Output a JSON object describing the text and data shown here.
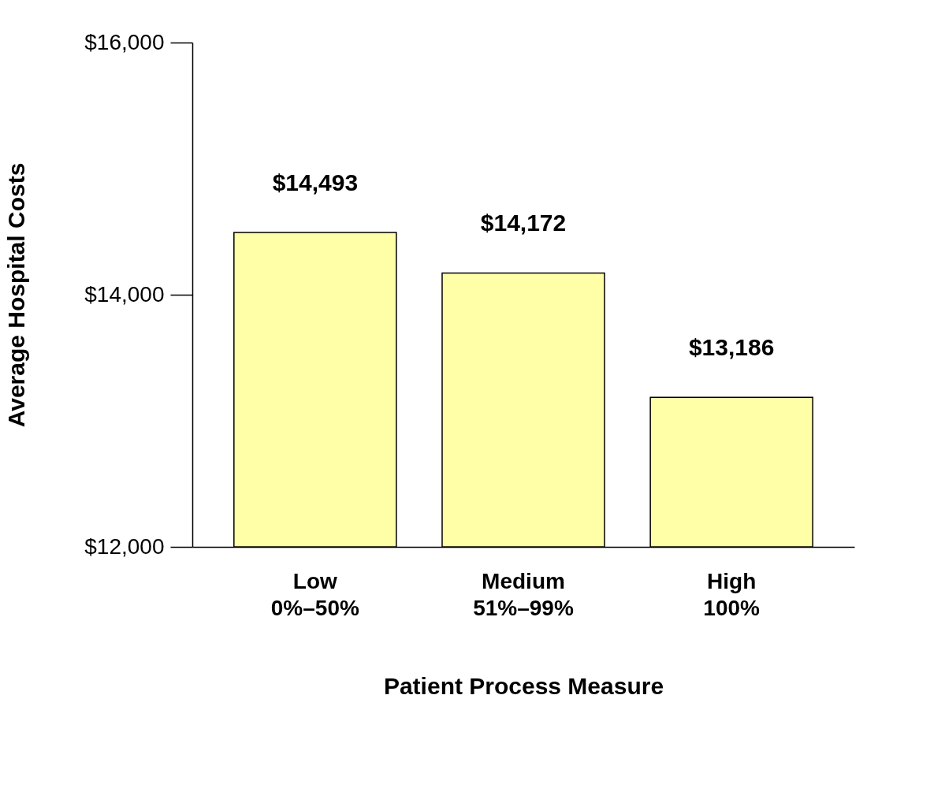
{
  "chart_data": {
    "type": "bar",
    "xlabel": "Patient Process Measure",
    "ylabel": "Average Hospital Costs",
    "categories": [
      "Low\n0%–50%",
      "Medium\n51%–99%",
      "High\n100%"
    ],
    "values": [
      14493,
      14172,
      13186
    ],
    "value_labels": [
      "$14,493",
      "$14,172",
      "$13,186"
    ],
    "color": "#ffffa8",
    "ylim": [
      12000,
      16000
    ],
    "yticks": [
      {
        "value": 12000,
        "label": "$12,000"
      },
      {
        "value": 14000,
        "label": "$14,000"
      },
      {
        "value": 16000,
        "label": "$16,000"
      }
    ],
    "grid": false
  }
}
